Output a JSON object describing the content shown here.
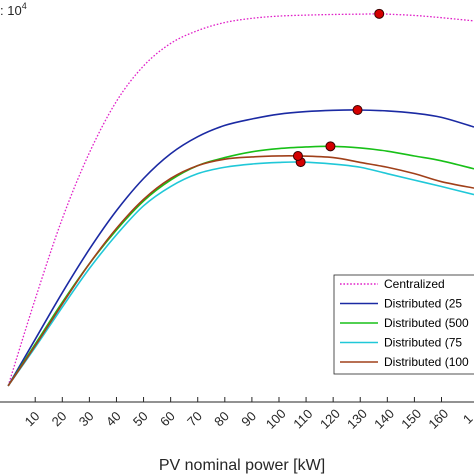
{
  "chart_data": {
    "type": "line",
    "xlabel": "PV nominal power [kW]",
    "ylabel": "",
    "y_multiplier": {
      "prefix": ": 10",
      "exponent": "4"
    },
    "xlim": [
      -3,
      172
    ],
    "ylim": [
      -0.5,
      12
    ],
    "x_ticks": [
      10,
      20,
      30,
      40,
      50,
      60,
      70,
      80,
      90,
      100,
      110,
      120,
      130,
      140,
      150,
      160
    ],
    "x_tick_labels": [
      "10",
      "20",
      "30",
      "40",
      "50",
      "60",
      "70",
      "80",
      "90",
      "100",
      "110",
      "120",
      "130",
      "140",
      "150",
      "160"
    ],
    "x_clipped_label": "1",
    "legend_position": "bottom-right",
    "grid": false,
    "series": [
      {
        "name": "Centralized",
        "color": "#e020c8",
        "dash": "dotted",
        "x": [
          0,
          10,
          20,
          30,
          40,
          50,
          60,
          70,
          80,
          90,
          100,
          110,
          120,
          130,
          137,
          140,
          150,
          160,
          172
        ],
        "y": [
          0,
          2.7,
          5.2,
          7.25,
          8.85,
          9.95,
          10.65,
          11.05,
          11.3,
          11.43,
          11.5,
          11.53,
          11.55,
          11.56,
          11.57,
          11.56,
          11.52,
          11.45,
          11.35
        ],
        "optimum": {
          "x": 137,
          "y": 11.57
        }
      },
      {
        "name": "Distributed (25",
        "color": "#1b2aa3",
        "dash": "solid",
        "x": [
          0,
          10,
          20,
          30,
          40,
          50,
          60,
          70,
          80,
          90,
          100,
          110,
          120,
          129,
          140,
          150,
          160,
          172
        ],
        "y": [
          0,
          1.45,
          2.9,
          4.25,
          5.45,
          6.45,
          7.22,
          7.75,
          8.1,
          8.3,
          8.45,
          8.53,
          8.57,
          8.58,
          8.55,
          8.48,
          8.35,
          8.05
        ],
        "optimum": {
          "x": 129,
          "y": 8.58
        }
      },
      {
        "name": "Distributed (500",
        "color": "#18c018",
        "dash": "solid",
        "x": [
          0,
          10,
          20,
          30,
          40,
          50,
          60,
          70,
          80,
          90,
          100,
          110,
          119,
          130,
          140,
          150,
          160,
          172
        ],
        "y": [
          0,
          1.3,
          2.6,
          3.8,
          4.85,
          5.75,
          6.4,
          6.85,
          7.1,
          7.28,
          7.38,
          7.43,
          7.45,
          7.4,
          7.3,
          7.15,
          7.0,
          6.75
        ],
        "optimum": {
          "x": 119,
          "y": 7.45
        }
      },
      {
        "name": "Distributed (75",
        "color": "#20c8d8",
        "dash": "solid",
        "x": [
          0,
          10,
          20,
          30,
          40,
          50,
          60,
          70,
          80,
          90,
          100,
          108,
          120,
          130,
          140,
          150,
          160,
          172
        ],
        "y": [
          0,
          1.2,
          2.45,
          3.65,
          4.7,
          5.6,
          6.2,
          6.6,
          6.8,
          6.9,
          6.95,
          6.96,
          6.9,
          6.8,
          6.6,
          6.4,
          6.2,
          5.95
        ],
        "optimum": {
          "x": 108,
          "y": 6.96
        }
      },
      {
        "name": "Distributed (100",
        "color": "#a0401a",
        "dash": "solid",
        "x": [
          0,
          10,
          20,
          30,
          40,
          50,
          60,
          70,
          80,
          90,
          100,
          107,
          120,
          130,
          140,
          150,
          160,
          172
        ],
        "y": [
          0,
          1.25,
          2.55,
          3.8,
          4.9,
          5.8,
          6.45,
          6.85,
          7.05,
          7.12,
          7.15,
          7.15,
          7.1,
          6.95,
          6.8,
          6.6,
          6.35,
          6.15
        ],
        "optimum": {
          "x": 107,
          "y": 7.15
        }
      }
    ]
  }
}
